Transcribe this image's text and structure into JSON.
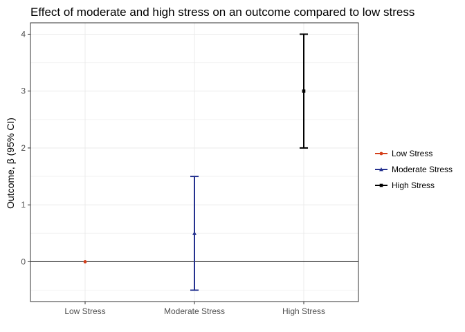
{
  "chart_data": {
    "type": "scatter",
    "title": "Effect of moderate and high stress on an outcome compared to low stress",
    "xlabel": "",
    "ylabel": "Outcome, β (95% CI)",
    "categories": [
      "Low Stress",
      "Moderate Stress",
      "High Stress"
    ],
    "ylim": [
      -0.7,
      4.2
    ],
    "yticks": [
      0,
      1,
      2,
      3,
      4
    ],
    "grid": true,
    "reference_line": 0,
    "legend_position": "right",
    "series": [
      {
        "name": "Low Stress",
        "category": "Low Stress",
        "estimate": 0,
        "lower": 0,
        "upper": 0,
        "color": "#d4401c",
        "marker": "circle"
      },
      {
        "name": "Moderate Stress",
        "category": "Moderate Stress",
        "estimate": 0.5,
        "lower": -0.5,
        "upper": 1.5,
        "color": "#24318f",
        "marker": "triangle"
      },
      {
        "name": "High Stress",
        "category": "High Stress",
        "estimate": 3,
        "lower": 2,
        "upper": 4,
        "color": "#000000",
        "marker": "square"
      }
    ]
  }
}
